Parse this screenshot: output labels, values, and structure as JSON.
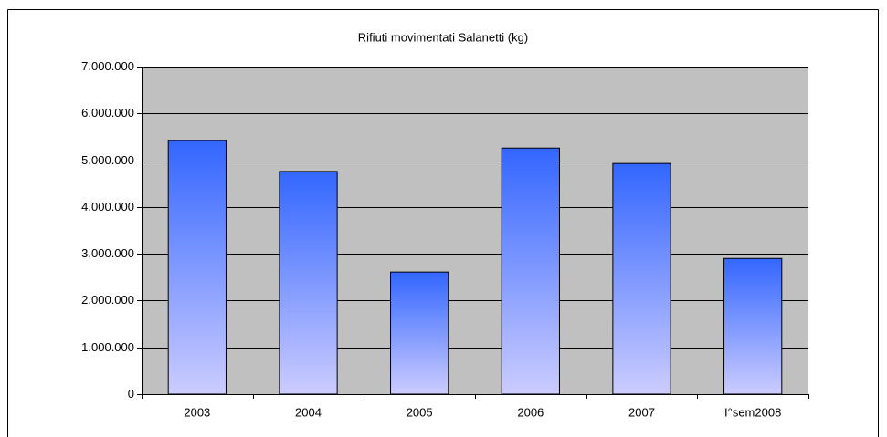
{
  "chart_data": {
    "type": "bar",
    "title": "Rifiuti movimentati Salanetti (kg)",
    "categories": [
      "2003",
      "2004",
      "2005",
      "2006",
      "2007",
      "I°sem2008"
    ],
    "values": [
      5420000,
      4760000,
      2610000,
      5260000,
      4930000,
      2900000
    ],
    "gradient": [
      "#3366ff",
      "#ccccff"
    ],
    "plot_background": "#c0c0c0",
    "ylim": [
      0,
      7000000
    ],
    "yticks": [
      0,
      {
        "value": 1000000,
        "label": "1.000.000"
      },
      {
        "value": 2000000,
        "label": "2.000.000"
      },
      {
        "value": 3000000,
        "label": "3.000.000"
      },
      {
        "value": 4000000,
        "label": "4.000.000"
      },
      {
        "value": 5000000,
        "label": "5.000.000"
      },
      {
        "value": 6000000,
        "label": "6.000.000"
      },
      {
        "value": 7000000,
        "label": "7.000.000"
      }
    ],
    "grid": true
  }
}
